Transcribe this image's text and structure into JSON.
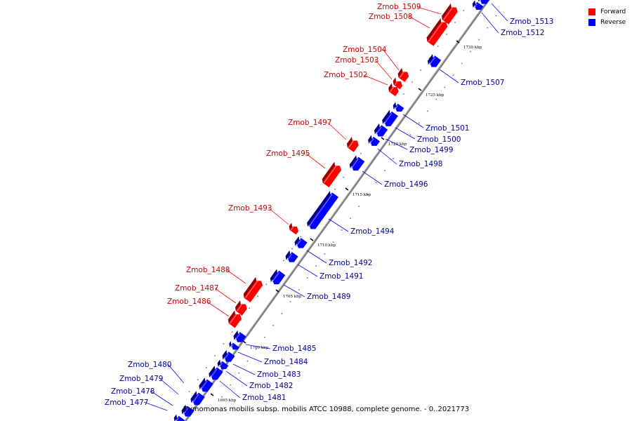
{
  "caption": "Zymomonas mobilis subsp. mobilis ATCC 10988, complete genome. - 0..2021773",
  "legend": [
    {
      "label": "Forward",
      "color": "#ff0000"
    },
    {
      "label": "Reverse",
      "color": "#0000ff"
    }
  ],
  "colors": {
    "forward": "#ff0000",
    "reverse": "#0000ff",
    "backbone": "#808080",
    "forward_label": "#cc0000",
    "reverse_label": "#000099"
  },
  "ticks": [
    {
      "text": "1695 kbp"
    },
    {
      "text": "1700 kbp"
    },
    {
      "text": "1705 kbp"
    },
    {
      "text": "1710 kbp"
    },
    {
      "text": "1715 kbp"
    },
    {
      "text": "1720 kbp"
    },
    {
      "text": "1725 kbp"
    },
    {
      "text": "1730 kbp"
    }
  ],
  "genes": [
    {
      "name": "Zmob_1477",
      "strand": "reverse"
    },
    {
      "name": "Zmob_1478",
      "strand": "reverse"
    },
    {
      "name": "Zmob_1479",
      "strand": "reverse"
    },
    {
      "name": "Zmob_1480",
      "strand": "reverse"
    },
    {
      "name": "Zmob_1481",
      "strand": "reverse"
    },
    {
      "name": "Zmob_1482",
      "strand": "reverse"
    },
    {
      "name": "Zmob_1483",
      "strand": "reverse"
    },
    {
      "name": "Zmob_1484",
      "strand": "reverse"
    },
    {
      "name": "Zmob_1485",
      "strand": "reverse"
    },
    {
      "name": "Zmob_1486",
      "strand": "forward"
    },
    {
      "name": "Zmob_1487",
      "strand": "forward"
    },
    {
      "name": "Zmob_1488",
      "strand": "forward"
    },
    {
      "name": "Zmob_1489",
      "strand": "reverse"
    },
    {
      "name": "Zmob_1491",
      "strand": "reverse"
    },
    {
      "name": "Zmob_1492",
      "strand": "reverse"
    },
    {
      "name": "Zmob_1493",
      "strand": "forward"
    },
    {
      "name": "Zmob_1494",
      "strand": "reverse"
    },
    {
      "name": "Zmob_1495",
      "strand": "forward"
    },
    {
      "name": "Zmob_1496",
      "strand": "reverse"
    },
    {
      "name": "Zmob_1497",
      "strand": "forward"
    },
    {
      "name": "Zmob_1498",
      "strand": "reverse"
    },
    {
      "name": "Zmob_1499",
      "strand": "reverse"
    },
    {
      "name": "Zmob_1500",
      "strand": "reverse"
    },
    {
      "name": "Zmob_1501",
      "strand": "reverse"
    },
    {
      "name": "Zmob_1502",
      "strand": "forward"
    },
    {
      "name": "Zmob_1503",
      "strand": "forward"
    },
    {
      "name": "Zmob_1504",
      "strand": "forward"
    },
    {
      "name": "Zmob_1507",
      "strand": "reverse"
    },
    {
      "name": "Zmob_1508",
      "strand": "forward"
    },
    {
      "name": "Zmob_1509",
      "strand": "forward"
    },
    {
      "name": "Zmob_1512",
      "strand": "reverse"
    },
    {
      "name": "Zmob_1513",
      "strand": "reverse"
    }
  ]
}
